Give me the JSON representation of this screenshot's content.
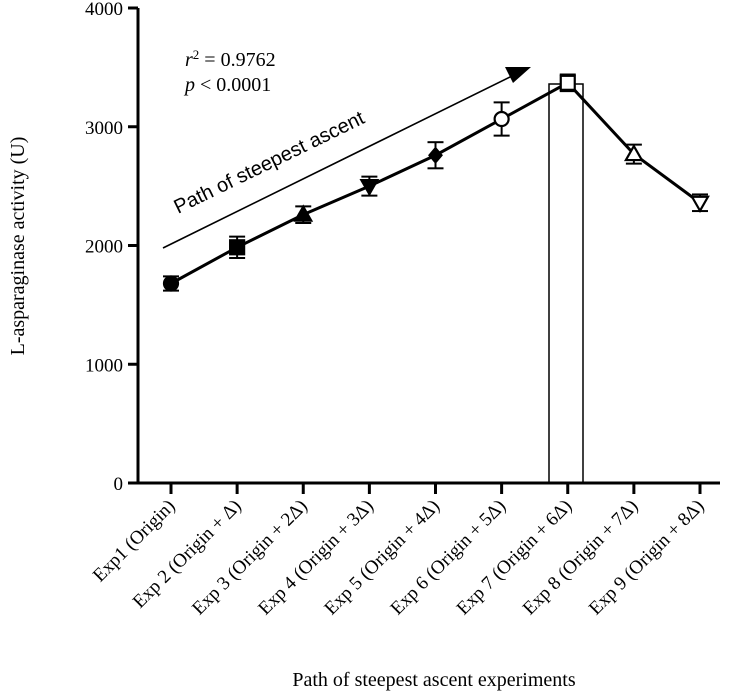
{
  "chart_data": {
    "type": "line",
    "title": "",
    "xlabel": "Path of steepest ascent experiments",
    "ylabel": "L-asparaginase activity (U)",
    "ylim": [
      0,
      4000
    ],
    "yticks": [
      0,
      1000,
      2000,
      3000,
      4000
    ],
    "grid": false,
    "categories": [
      "Exp1 (Origin)",
      "Exp 2 (Origin + Δ)",
      "Exp 3 (Origin + 2Δ)",
      "Exp 4 (Origin + 3Δ)",
      "Exp 5 (Origin + 4Δ)",
      "Exp 6 (Origin + 5Δ)",
      "Exp 7 (Origin + 6Δ)",
      "Exp 8 (Origin + 7Δ)",
      "Exp 9 (Origin + 8Δ)"
    ],
    "series": [
      {
        "values": [
          1680,
          1985,
          2260,
          2500,
          2760,
          3065,
          3370,
          2770,
          2360
        ],
        "errors": [
          60,
          90,
          70,
          80,
          110,
          140,
          70,
          80,
          70
        ],
        "markers": [
          "circle",
          "square",
          "triangle-up",
          "triangle-down",
          "diamond",
          "circle-open",
          "square-open",
          "triangle-up-open",
          "triangle-down-open"
        ]
      }
    ],
    "highlight_category": "Exp 7 (Origin + 6Δ)",
    "annotations": {
      "r2_symbol": "r",
      "r2_sup": "2",
      "r2_value": " = 0.9762",
      "p_symbol": "p",
      "p_value": " < 0.0001",
      "path_label": "Path of steepest ascent"
    }
  }
}
